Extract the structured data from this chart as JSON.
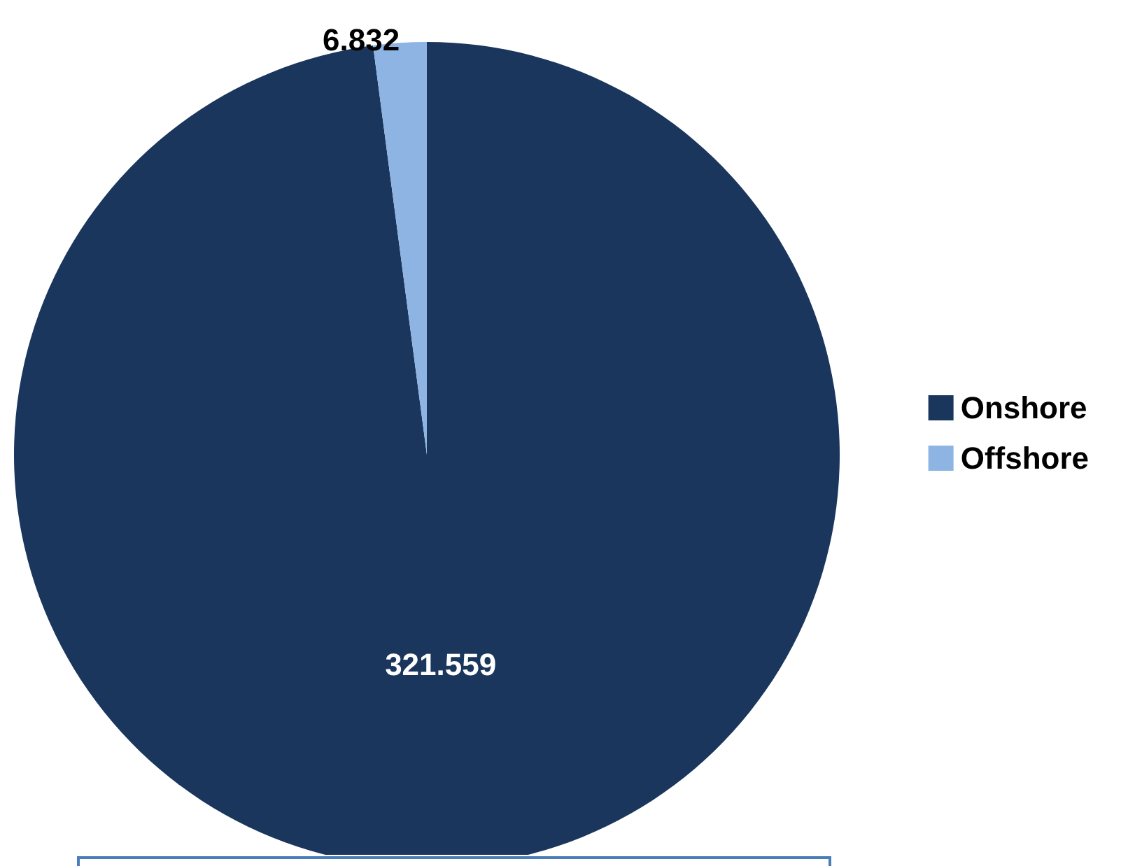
{
  "chart_data": {
    "type": "pie",
    "categories": [
      "Onshore",
      "Offshore"
    ],
    "values": [
      321.559,
      6.832
    ],
    "colors": [
      "#1a365d",
      "#8db4e2"
    ],
    "data_labels": true,
    "legend": "right"
  }
}
